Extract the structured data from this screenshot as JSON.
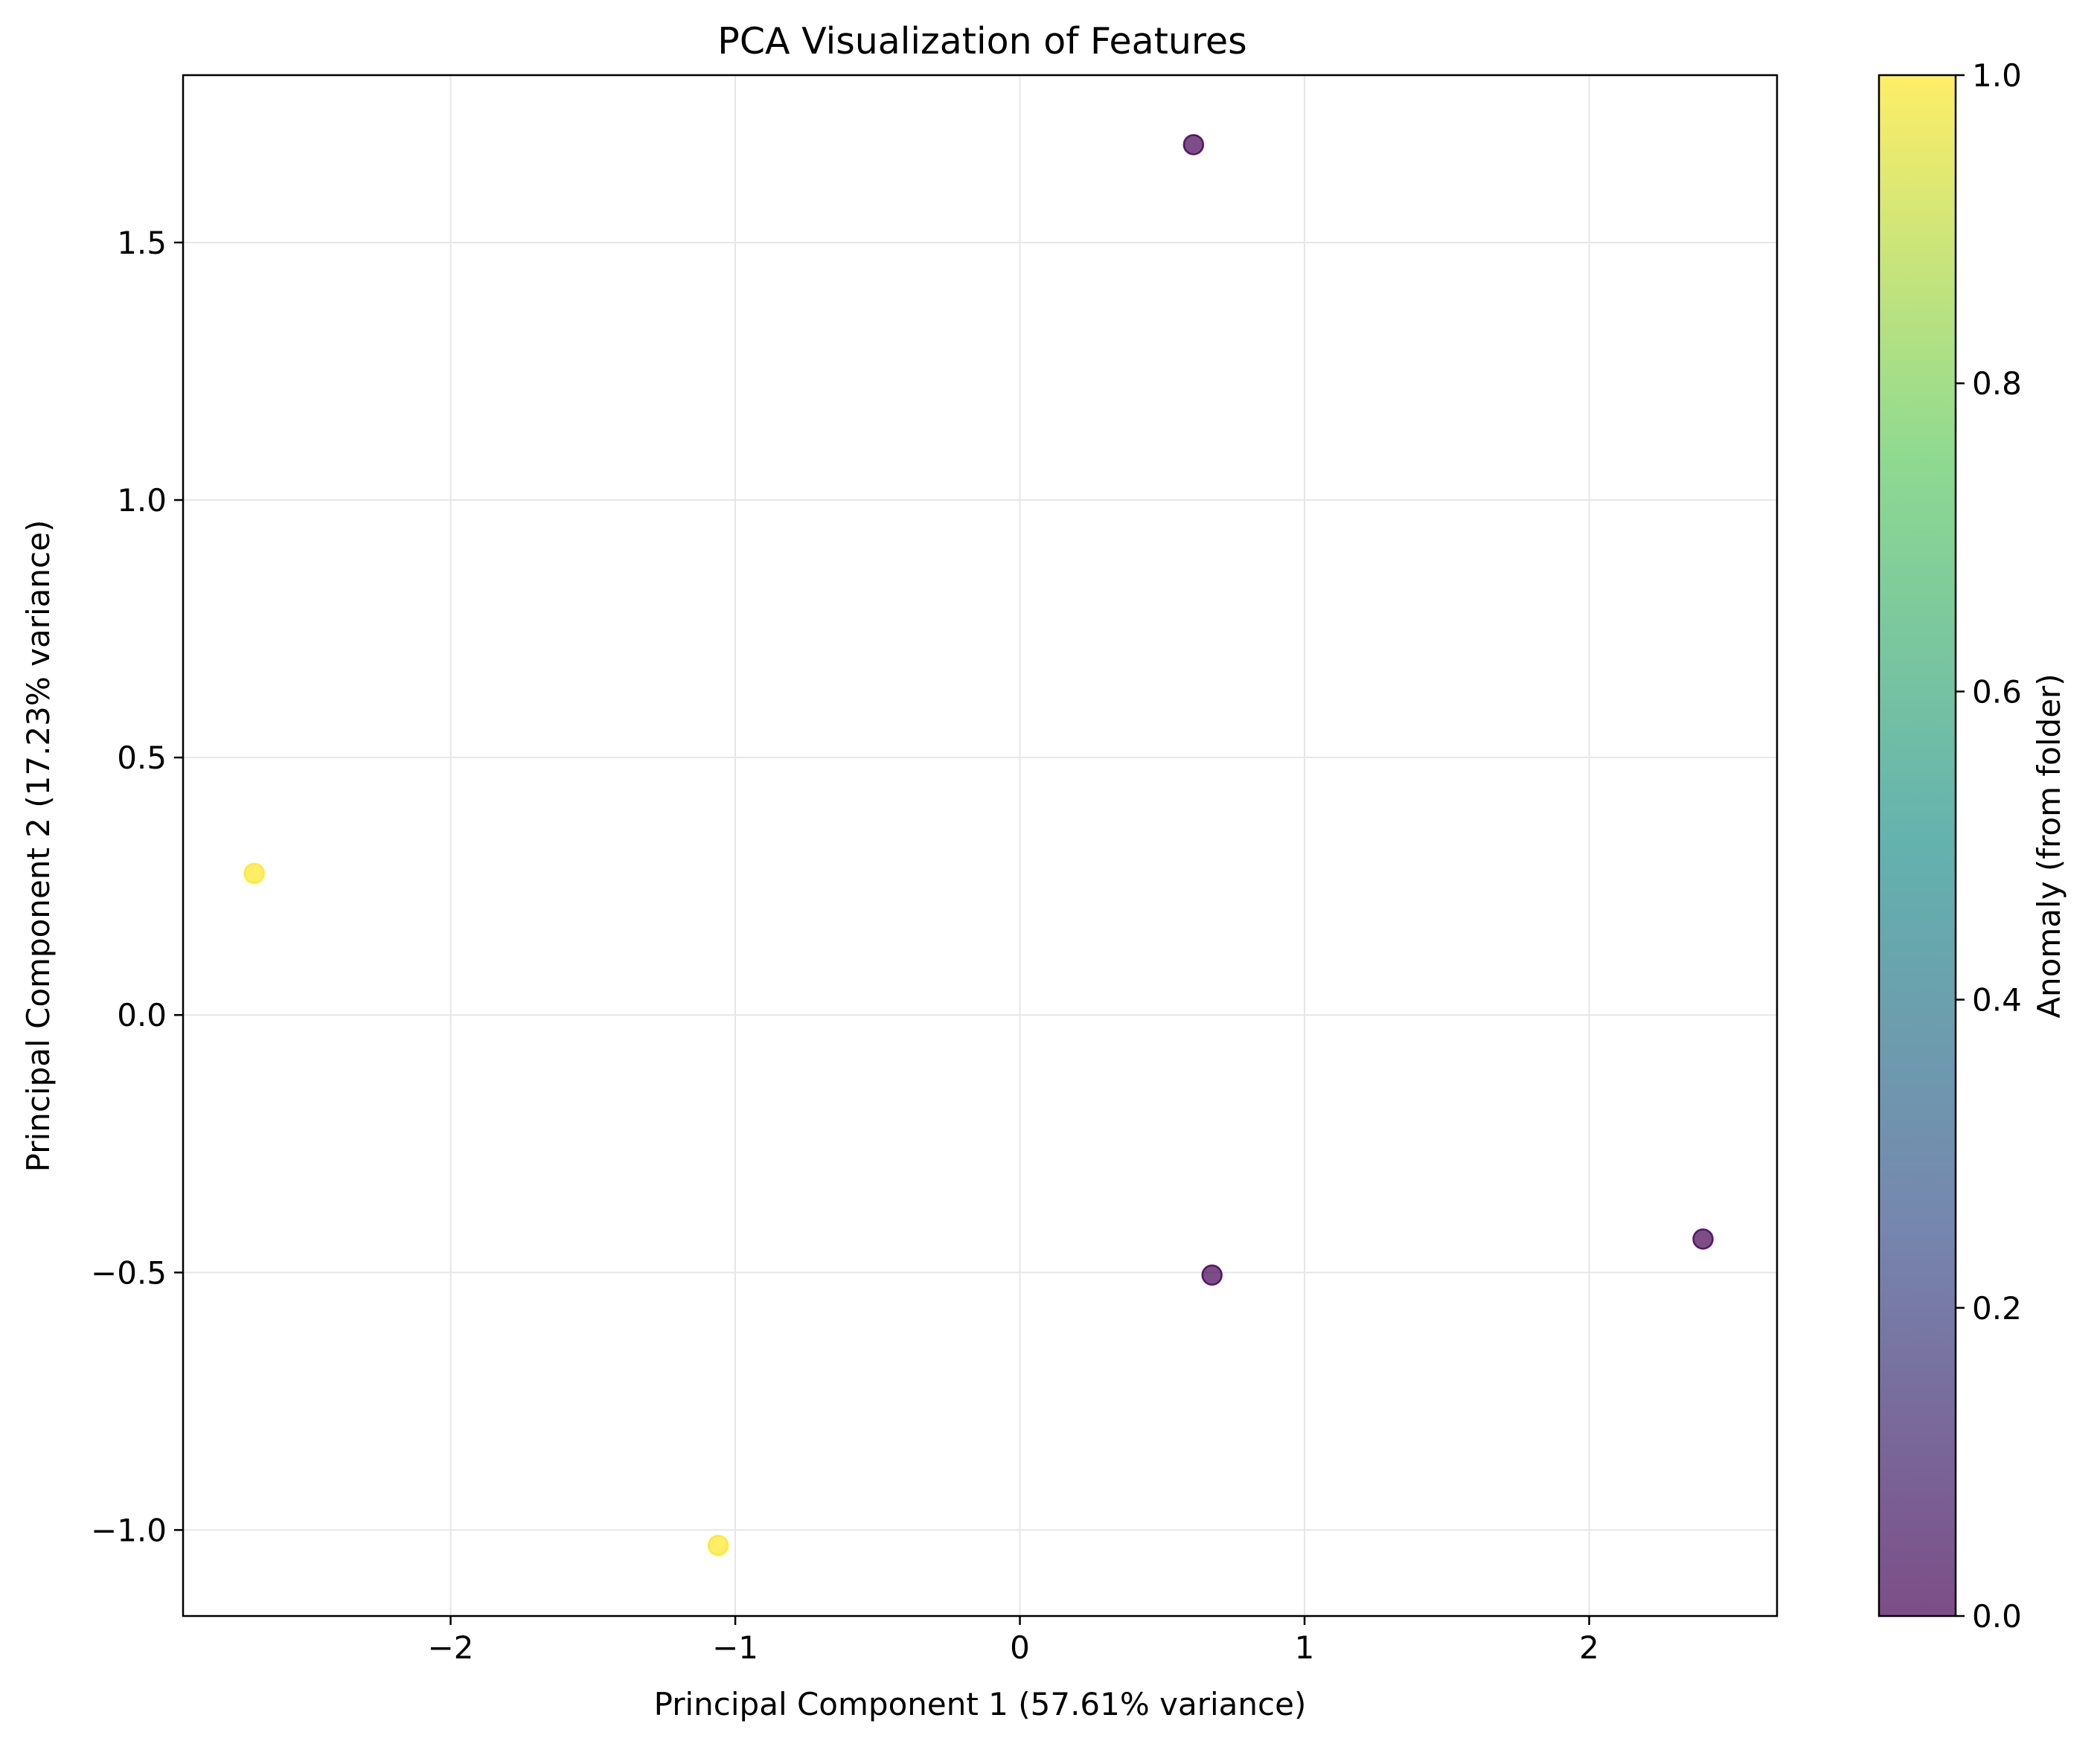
{
  "chart_data": {
    "type": "scatter",
    "title": "PCA Visualization of Features",
    "xlabel": "Principal Component 1 (57.61% variance)",
    "ylabel": "Principal Component 2 (17.23% variance)",
    "xlim": [
      -2.94,
      2.66
    ],
    "ylim": [
      -1.167,
      1.825
    ],
    "xticks": [
      {
        "value": -2,
        "label": "−2"
      },
      {
        "value": -1,
        "label": "−1"
      },
      {
        "value": 0,
        "label": "0"
      },
      {
        "value": 1,
        "label": "1"
      },
      {
        "value": 2,
        "label": "2"
      }
    ],
    "yticks": [
      {
        "value": -1.0,
        "label": "−1.0"
      },
      {
        "value": -0.5,
        "label": "−0.5"
      },
      {
        "value": 0.0,
        "label": "0.0"
      },
      {
        "value": 0.5,
        "label": "0.5"
      },
      {
        "value": 1.0,
        "label": "1.0"
      },
      {
        "value": 1.5,
        "label": "1.5"
      }
    ],
    "grid": true,
    "points": [
      {
        "x": 0.61,
        "y": 1.69,
        "anomaly": 0
      },
      {
        "x": -2.69,
        "y": 0.275,
        "anomaly": 1
      },
      {
        "x": 0.675,
        "y": -0.505,
        "anomaly": 0
      },
      {
        "x": 2.4,
        "y": -0.435,
        "anomaly": 0
      },
      {
        "x": -1.06,
        "y": -1.03,
        "anomaly": 1
      }
    ],
    "colorbar": {
      "label": "Anomaly (from folder)",
      "range": [
        0.0,
        1.0
      ],
      "ticks": [
        {
          "value": 0.0,
          "label": "0.0"
        },
        {
          "value": 0.2,
          "label": "0.2"
        },
        {
          "value": 0.4,
          "label": "0.4"
        },
        {
          "value": 0.6,
          "label": "0.6"
        },
        {
          "value": 0.8,
          "label": "0.8"
        },
        {
          "value": 1.0,
          "label": "1.0"
        }
      ],
      "colormap": [
        "#440154",
        "#3b528b",
        "#21918c",
        "#5ec962",
        "#fde725"
      ],
      "alpha": 0.7
    },
    "colors": {
      "anomaly_0": "#440154",
      "anomaly_1": "#fde725",
      "grid": "#e6e6e6",
      "axis": "#000000"
    }
  }
}
